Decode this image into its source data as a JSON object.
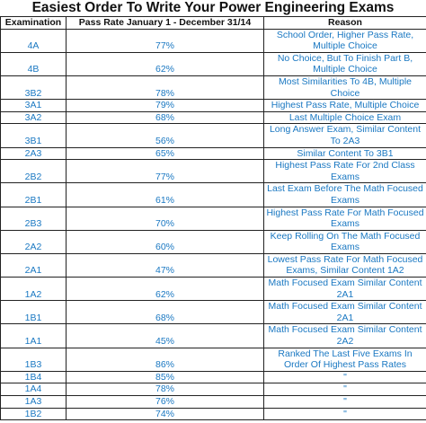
{
  "header": {
    "title": "Easiest Order To Write Your Power Engineering Exams"
  },
  "table": {
    "columns": [
      "Examination",
      "Pass Rate January 1 - December 31/14",
      "Reason"
    ],
    "rows": [
      [
        "4A",
        "77%",
        "School Order, Higher Pass Rate, Multiple Choice"
      ],
      [
        "4B",
        "62%",
        "No Choice, But To Finish Part B, Multiple Choice"
      ],
      [
        "3B2",
        "78%",
        "Most Similarities To 4B, Multiple Choice"
      ],
      [
        "3A1",
        "79%",
        "Highest Pass Rate, Multiple Choice"
      ],
      [
        "3A2",
        "68%",
        "Last Multiple Choice Exam"
      ],
      [
        "3B1",
        "56%",
        "Long Answer Exam, Similar Content To 2A3"
      ],
      [
        "2A3",
        "65%",
        "Similar Content To 3B1"
      ],
      [
        "2B2",
        "77%",
        "Highest Pass Rate For 2nd Class Exams"
      ],
      [
        "2B1",
        "61%",
        "Last Exam Before The Math Focused Exams"
      ],
      [
        "2B3",
        "70%",
        "Highest Pass Rate For Math Focused Exams"
      ],
      [
        "2A2",
        "60%",
        "Keep Rolling On The Math Focused Exams"
      ],
      [
        "2A1",
        "47%",
        "Lowest Pass Rate For Math Focused Exams, Similar Content 1A2"
      ],
      [
        "1A2",
        "62%",
        "Math Focused Exam Similar Content 2A1"
      ],
      [
        "1B1",
        "68%",
        "Math Focused Exam Similar Content 2A1"
      ],
      [
        "1A1",
        "45%",
        "Math Focused Exam Similar Content 2A2"
      ],
      [
        "1B3",
        "86%",
        "Ranked The Last Five Exams In Order Of Highest Pass Rates"
      ],
      [
        "1B4",
        "85%",
        "\""
      ],
      [
        "1A4",
        "78%",
        "\""
      ],
      [
        "1A3",
        "76%",
        "\""
      ],
      [
        "1B2",
        "74%",
        "\""
      ]
    ]
  }
}
